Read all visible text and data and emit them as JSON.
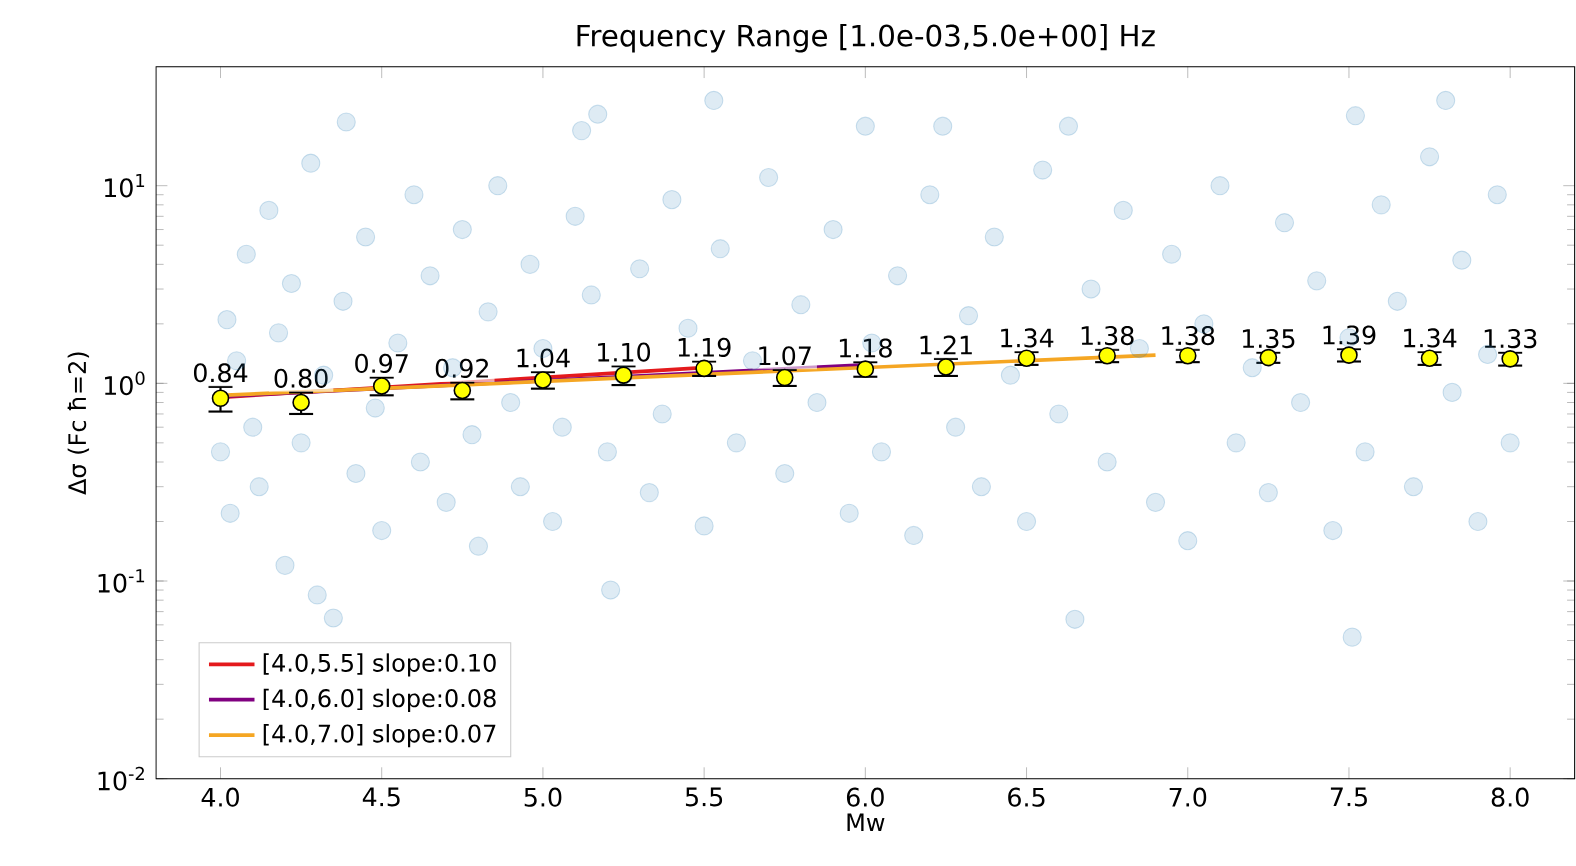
{
  "chart_data": {
    "type": "scatter",
    "title": "Frequency Range [1.0e-03,5.0e+00] Hz",
    "xlabel": "Mw",
    "ylabel": "Δσ (Fc ħ=2)",
    "log": "y",
    "marker": "circle",
    "legend": "bottom left",
    "xlim": [
      3.8,
      8.2
    ],
    "ylim": [
      0.01,
      40
    ],
    "xticks": [
      {
        "value": 4,
        "label": "4.0"
      },
      {
        "value": 4.5,
        "label": "4.5"
      },
      {
        "value": 5,
        "label": "5.0"
      },
      {
        "value": 5.5,
        "label": "5.5"
      },
      {
        "value": 6,
        "label": "6.0"
      },
      {
        "value": 6.5,
        "label": "6.5"
      },
      {
        "value": 7,
        "label": "7.0"
      },
      {
        "value": 7.5,
        "label": "7.5"
      },
      {
        "value": 8,
        "label": "8.0"
      }
    ],
    "yticks": [
      {
        "value": 0.01,
        "label": "10$^{-2}$"
      },
      {
        "value": 0.1,
        "label": "10$^{-1}$"
      },
      {
        "value": 1,
        "label": "10$^{0}$"
      },
      {
        "value": 10,
        "label": "10$^{1}$"
      }
    ],
    "series": [
      {
        "color": "#1f77b4",
        "x": [
          4.0,
          4.02,
          4.03,
          4.05,
          4.08,
          4.1,
          4.12,
          4.15,
          4.18,
          4.2,
          4.22,
          4.25,
          4.28,
          4.3,
          4.32,
          4.35,
          4.38,
          4.39,
          4.42,
          4.45,
          4.48,
          4.5,
          4.55,
          4.6,
          4.62,
          4.65,
          4.7,
          4.72,
          4.75,
          4.78,
          4.8,
          4.83,
          4.86,
          4.9,
          4.93,
          4.96,
          5.0,
          5.03,
          5.06,
          5.1,
          5.12,
          5.15,
          5.17,
          5.2,
          5.21,
          5.25,
          5.3,
          5.33,
          5.37,
          5.4,
          5.45,
          5.5,
          5.53,
          5.55,
          5.6,
          5.65,
          5.7,
          5.75,
          5.8,
          5.85,
          5.9,
          5.95,
          6.0,
          6.02,
          6.05,
          6.1,
          6.15,
          6.2,
          6.24,
          6.28,
          6.32,
          6.36,
          6.4,
          6.45,
          6.5,
          6.55,
          6.6,
          6.63,
          6.65,
          6.7,
          6.75,
          6.8,
          6.85,
          6.9,
          6.95,
          7.0,
          7.05,
          7.1,
          7.15,
          7.2,
          7.25,
          7.3,
          7.35,
          7.4,
          7.45,
          7.5,
          7.52,
          7.51,
          7.55,
          7.6,
          7.65,
          7.7,
          7.75,
          7.8,
          7.82,
          7.85,
          7.9,
          7.93,
          7.96,
          8.0
        ],
        "values": [
          0.45,
          2.1,
          0.22,
          1.3,
          4.5,
          0.6,
          0.3,
          7.5,
          1.8,
          0.12,
          3.2,
          0.5,
          13,
          0.085,
          1.1,
          0.065,
          2.6,
          21,
          0.35,
          5.5,
          0.75,
          0.18,
          1.6,
          9,
          0.4,
          3.5,
          0.25,
          1.2,
          6,
          0.55,
          0.15,
          2.3,
          10,
          0.8,
          0.3,
          4,
          1.5,
          0.2,
          0.6,
          7,
          19,
          2.8,
          23,
          0.45,
          0.09,
          1.1,
          3.8,
          0.28,
          0.7,
          8.5,
          1.9,
          0.19,
          27,
          4.8,
          0.5,
          1.3,
          11,
          0.35,
          2.5,
          0.8,
          6,
          0.22,
          20,
          1.6,
          0.45,
          3.5,
          0.17,
          9,
          20,
          0.6,
          2.2,
          0.3,
          5.5,
          1.1,
          0.2,
          12,
          0.7,
          20,
          0.064,
          3,
          0.4,
          7.5,
          1.5,
          0.25,
          4.5,
          0.16,
          2,
          10,
          0.5,
          1.2,
          0.28,
          6.5,
          0.8,
          3.3,
          0.18,
          1.7,
          22.6,
          0.052,
          0.45,
          8,
          2.6,
          0.3,
          14,
          27,
          0.9,
          4.2,
          0.2,
          1.4,
          9,
          0.5
        ]
      },
      {
        "type": "line",
        "name": "[4.0,5.5] slope:0.10",
        "color": "#e41a1c",
        "marker": "none",
        "x": [
          4.0,
          5.5
        ],
        "values": [
          0.85,
          1.2
        ]
      },
      {
        "type": "line",
        "name": "[4.0,6.0] slope:0.08",
        "color": "#800080",
        "marker": "none",
        "x": [
          4.0,
          6.0
        ],
        "values": [
          0.86,
          1.24
        ]
      },
      {
        "type": "line",
        "name": "[4.0,7.0] slope:0.07",
        "color": "#f5a623",
        "marker": "none",
        "x": [
          4.0,
          6.9
        ],
        "values": [
          0.87,
          1.39
        ]
      },
      {
        "color": "#ffff00",
        "x": [
          4.0,
          4.25,
          4.5,
          4.75,
          5.0,
          5.25,
          5.5,
          5.75,
          6.0,
          6.25,
          6.5,
          6.75,
          7.0,
          7.25,
          7.5,
          7.75,
          8.0
        ],
        "values": [
          0.84,
          0.8,
          0.97,
          0.92,
          1.04,
          1.1,
          1.19,
          1.07,
          1.18,
          1.21,
          1.34,
          1.38,
          1.38,
          1.35,
          1.39,
          1.34,
          1.33
        ],
        "value_labels": [
          "0.84",
          "0.80",
          "0.97",
          "0.92",
          "1.04",
          "1.10",
          "1.19",
          "1.07",
          "1.18",
          "1.21",
          "1.34",
          "1.38",
          "1.38",
          "1.35",
          "1.39",
          "1.34",
          "1.33"
        ],
        "errors": [
          0.12,
          0.1,
          0.1,
          0.09,
          0.1,
          0.12,
          0.1,
          0.1,
          0.1,
          0.12,
          0.1,
          0.1,
          0.1,
          0.08,
          0.1,
          0.1,
          0.1
        ]
      }
    ]
  }
}
